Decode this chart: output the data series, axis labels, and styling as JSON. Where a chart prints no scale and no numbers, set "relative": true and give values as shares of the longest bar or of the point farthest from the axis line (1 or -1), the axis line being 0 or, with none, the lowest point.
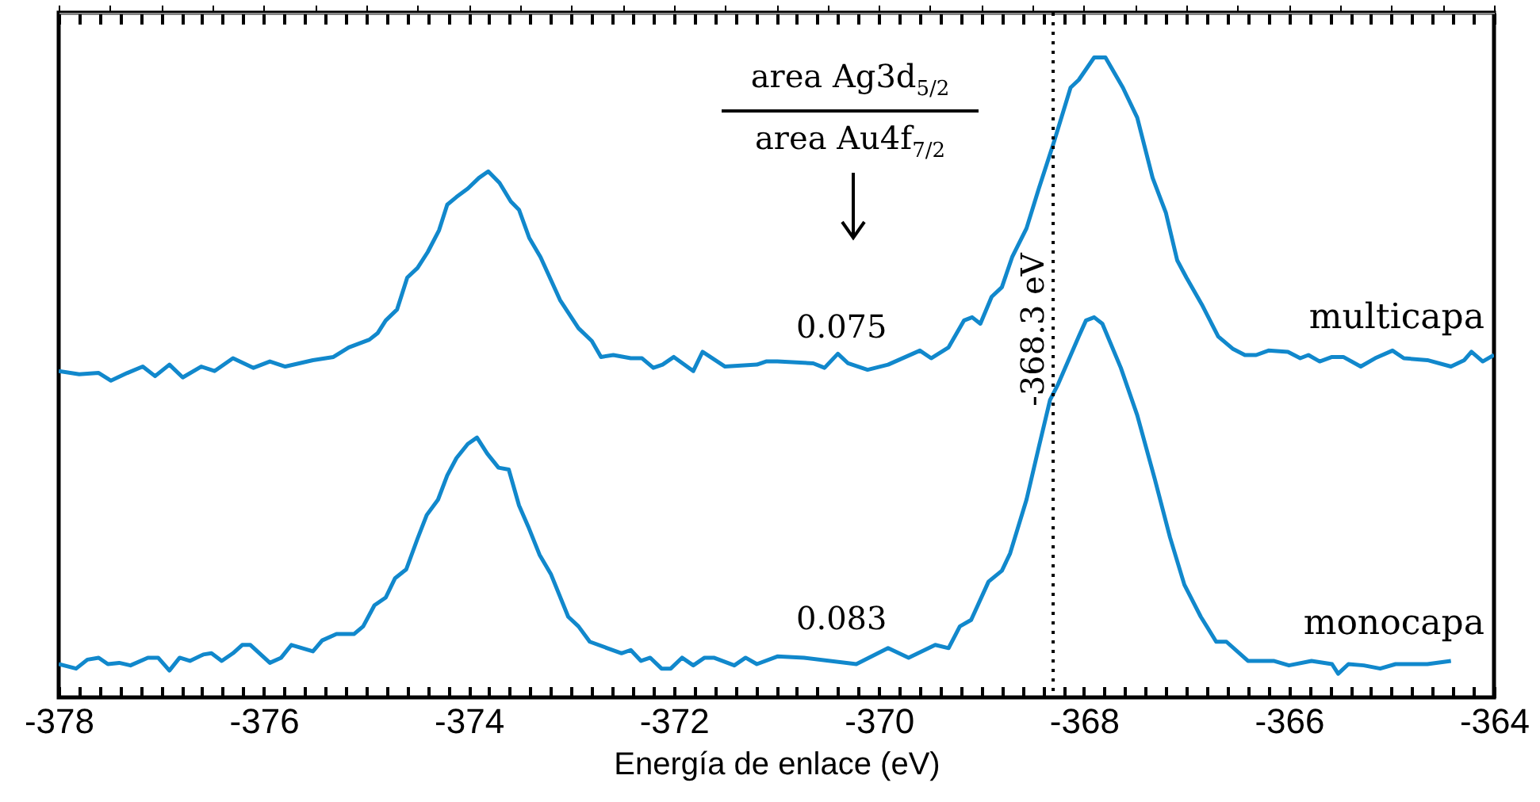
{
  "chart_data": {
    "type": "line",
    "relative": true,
    "xlabel": "Energía de enlace (eV)",
    "xlim": [
      -378,
      -364
    ],
    "xticks": [
      -378,
      -376,
      -374,
      -372,
      -370,
      -368,
      -366,
      -364
    ],
    "tick_labels": "x",
    "series": [
      {
        "name": "multicapa",
        "color": "#1188cc",
        "x": [
          -378.0,
          -377.8,
          -377.61,
          -377.49,
          -377.33,
          -377.18,
          -377.06,
          -376.92,
          -376.79,
          -376.61,
          -376.48,
          -376.3,
          -376.1,
          -375.94,
          -375.79,
          -375.52,
          -375.32,
          -375.17,
          -374.97,
          -374.89,
          -374.81,
          -374.7,
          -374.6,
          -374.5,
          -374.4,
          -374.29,
          -374.21,
          -374.12,
          -374.01,
          -373.9,
          -373.81,
          -373.7,
          -373.59,
          -373.51,
          -373.41,
          -373.3,
          -373.11,
          -372.93,
          -372.8,
          -372.71,
          -372.59,
          -372.42,
          -372.31,
          -372.2,
          -372.11,
          -372.0,
          -371.81,
          -371.72,
          -371.5,
          -371.19,
          -371.1,
          -370.99,
          -370.64,
          -370.53,
          -370.4,
          -370.3,
          -370.11,
          -369.91,
          -369.6,
          -369.49,
          -369.32,
          -369.17,
          -369.09,
          -369.01,
          -368.9,
          -368.8,
          -368.7,
          -368.56,
          -368.44,
          -368.29,
          -368.13,
          -368.05,
          -367.9,
          -367.79,
          -367.62,
          -367.48,
          -367.33,
          -367.2,
          -367.09,
          -367.0,
          -366.85,
          -366.69,
          -366.55,
          -366.43,
          -366.32,
          -366.2,
          -366.01,
          -365.89,
          -365.81,
          -365.7,
          -365.58,
          -365.47,
          -365.3,
          -365.16,
          -364.99,
          -364.88,
          -364.65,
          -364.42,
          -364.29,
          -364.22,
          -364.11,
          -364.0
        ],
        "values": [
          0.51,
          0.505,
          0.507,
          0.495,
          0.507,
          0.517,
          0.502,
          0.52,
          0.5,
          0.517,
          0.51,
          0.53,
          0.515,
          0.525,
          0.517,
          0.527,
          0.532,
          0.547,
          0.559,
          0.569,
          0.589,
          0.606,
          0.656,
          0.671,
          0.696,
          0.73,
          0.77,
          0.782,
          0.795,
          0.812,
          0.822,
          0.804,
          0.775,
          0.762,
          0.718,
          0.688,
          0.621,
          0.577,
          0.557,
          0.532,
          0.535,
          0.53,
          0.53,
          0.515,
          0.52,
          0.532,
          0.51,
          0.54,
          0.517,
          0.52,
          0.525,
          0.525,
          0.522,
          0.515,
          0.537,
          0.522,
          0.512,
          0.52,
          0.542,
          0.53,
          0.547,
          0.589,
          0.594,
          0.584,
          0.626,
          0.641,
          0.688,
          0.733,
          0.795,
          0.869,
          0.953,
          0.965,
          1.0,
          1.0,
          0.953,
          0.906,
          0.812,
          0.757,
          0.683,
          0.656,
          0.614,
          0.564,
          0.545,
          0.535,
          0.535,
          0.542,
          0.54,
          0.53,
          0.535,
          0.525,
          0.532,
          0.532,
          0.517,
          0.53,
          0.542,
          0.53,
          0.527,
          0.517,
          0.527,
          0.54,
          0.525,
          0.535
        ]
      },
      {
        "name": "monocapa",
        "color": "#1188cc",
        "x": [
          -378.0,
          -377.83,
          -377.72,
          -377.61,
          -377.52,
          -377.41,
          -377.3,
          -377.13,
          -377.03,
          -376.92,
          -376.82,
          -376.72,
          -376.59,
          -376.51,
          -376.41,
          -376.3,
          -376.21,
          -376.13,
          -375.94,
          -375.83,
          -375.73,
          -375.52,
          -375.43,
          -375.29,
          -375.12,
          -375.03,
          -374.92,
          -374.81,
          -374.72,
          -374.61,
          -374.5,
          -374.41,
          -374.3,
          -374.21,
          -374.12,
          -374.01,
          -373.92,
          -373.82,
          -373.71,
          -373.61,
          -373.51,
          -373.42,
          -373.31,
          -373.2,
          -373.03,
          -372.93,
          -372.82,
          -372.65,
          -372.51,
          -372.42,
          -372.32,
          -372.23,
          -372.12,
          -372.03,
          -371.92,
          -371.81,
          -371.7,
          -371.61,
          -371.41,
          -371.3,
          -371.19,
          -370.99,
          -370.73,
          -370.22,
          -369.91,
          -369.71,
          -369.45,
          -369.32,
          -369.21,
          -369.1,
          -368.93,
          -368.8,
          -368.72,
          -368.56,
          -368.44,
          -368.33,
          -368.25,
          -368.05,
          -367.98,
          -367.9,
          -367.82,
          -367.64,
          -367.48,
          -367.31,
          -367.16,
          -367.02,
          -366.86,
          -366.71,
          -366.61,
          -366.4,
          -366.15,
          -366.0,
          -365.78,
          -365.58,
          -365.52,
          -365.42,
          -365.27,
          -365.11,
          -364.96,
          -364.65,
          -364.42
        ],
        "values": [
          0.052,
          0.045,
          0.059,
          0.062,
          0.052,
          0.054,
          0.05,
          0.062,
          0.062,
          0.042,
          0.062,
          0.057,
          0.067,
          0.069,
          0.057,
          0.069,
          0.082,
          0.082,
          0.054,
          0.062,
          0.082,
          0.072,
          0.089,
          0.099,
          0.099,
          0.111,
          0.144,
          0.156,
          0.186,
          0.2,
          0.248,
          0.285,
          0.309,
          0.347,
          0.374,
          0.396,
          0.406,
          0.381,
          0.359,
          0.356,
          0.3,
          0.267,
          0.223,
          0.193,
          0.126,
          0.111,
          0.087,
          0.077,
          0.069,
          0.074,
          0.057,
          0.062,
          0.045,
          0.045,
          0.062,
          0.05,
          0.062,
          0.062,
          0.05,
          0.062,
          0.052,
          0.064,
          0.062,
          0.052,
          0.077,
          0.062,
          0.082,
          0.077,
          0.111,
          0.121,
          0.181,
          0.198,
          0.225,
          0.309,
          0.391,
          0.465,
          0.49,
          0.564,
          0.589,
          0.594,
          0.584,
          0.515,
          0.441,
          0.342,
          0.25,
          0.176,
          0.126,
          0.087,
          0.087,
          0.057,
          0.057,
          0.05,
          0.057,
          0.052,
          0.037,
          0.052,
          0.05,
          0.045,
          0.052,
          0.052,
          0.057
        ]
      }
    ],
    "ref_lines": [
      {
        "axis": "x",
        "value": -368.3,
        "label": "-368.3 eV",
        "color": "#000000",
        "line_style": "dotted"
      }
    ],
    "annotations": [
      "area Ag3d$_{5/2}$",
      "area Au4f$_{7/2}$",
      "0.075",
      "0.083"
    ]
  }
}
